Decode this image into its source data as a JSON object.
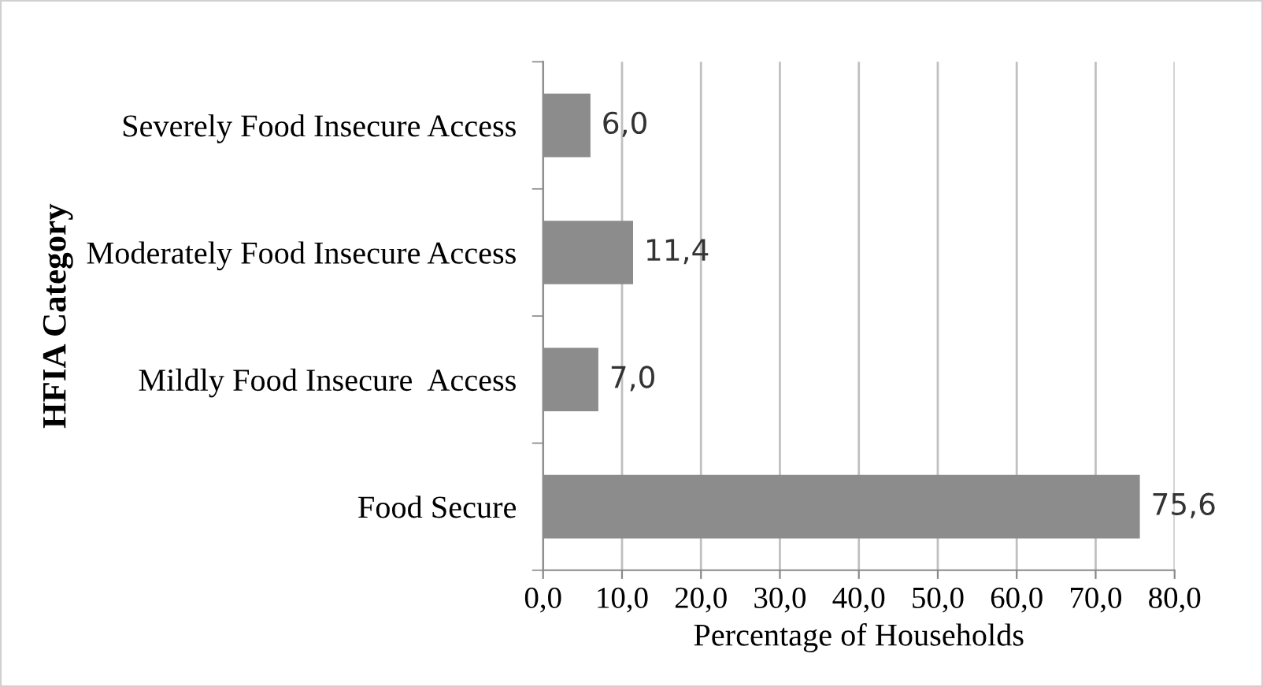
{
  "chart_data": {
    "type": "bar",
    "orientation": "horizontal",
    "xlabel": "Percentage of Households",
    "ylabel": "HFIA Category",
    "categories": [
      "Severely Food Insecure Access",
      "Moderately Food Insecure Access",
      "Mildly Food Insecure  Access",
      "Food Secure"
    ],
    "values": [
      6.0,
      11.4,
      7.0,
      75.6
    ],
    "value_labels": [
      "6,0",
      "11,4",
      "7,0",
      "75,6"
    ],
    "color": "#8c8c8c",
    "xlim": [
      0,
      80
    ],
    "xticks": [
      {
        "value": 0,
        "label": "0,0"
      },
      {
        "value": 10,
        "label": "10,0"
      },
      {
        "value": 20,
        "label": "20,0"
      },
      {
        "value": 30,
        "label": "30,0"
      },
      {
        "value": 40,
        "label": "40,0"
      },
      {
        "value": 50,
        "label": "50,0"
      },
      {
        "value": 60,
        "label": "60,0"
      },
      {
        "value": 70,
        "label": "70,0"
      },
      {
        "value": 80,
        "label": "80,0"
      }
    ],
    "grid": "x",
    "legend": false
  }
}
